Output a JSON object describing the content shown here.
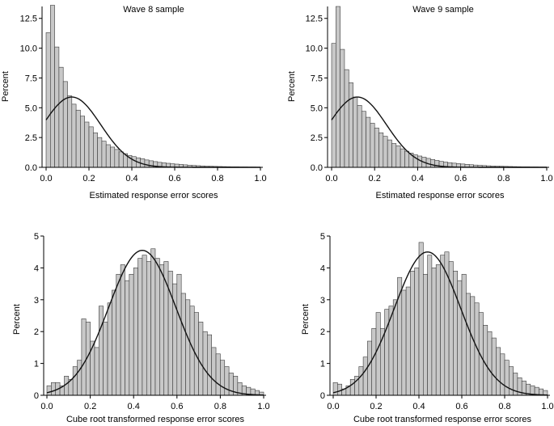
{
  "chart_data": [
    {
      "type": "histogram",
      "title": "Wave 8 sample",
      "xlabel": "Estimated response error scores",
      "ylabel": "Percent",
      "xlim": [
        0,
        1.0
      ],
      "ylim": [
        0,
        13.5
      ],
      "xticks": [
        "0.0",
        "0.2",
        "0.4",
        "0.6",
        "0.8",
        "1.0"
      ],
      "yticks": [
        "0.0",
        "2.5",
        "5.0",
        "7.5",
        "10.0",
        "12.5"
      ],
      "bin_width": 0.02,
      "bin_start": 0.0,
      "values": [
        11.3,
        13.6,
        10.1,
        8.4,
        7.2,
        6.0,
        5.3,
        4.8,
        4.3,
        3.8,
        3.4,
        2.9,
        2.5,
        2.2,
        1.9,
        1.7,
        1.5,
        1.3,
        1.15,
        1.0,
        0.9,
        0.8,
        0.72,
        0.62,
        0.55,
        0.48,
        0.42,
        0.38,
        0.34,
        0.3,
        0.27,
        0.24,
        0.21,
        0.18,
        0.16,
        0.14,
        0.12,
        0.1,
        0.09,
        0.08,
        0.07,
        0.06,
        0.05,
        0.04,
        0.04,
        0.03,
        0.03,
        0.02,
        0.02,
        0.01
      ],
      "normal_curve": {
        "mean": 0.12,
        "sd": 0.135,
        "peak": 5.9
      }
    },
    {
      "type": "histogram",
      "title": "Wave 9 sample",
      "xlabel": "Estimated response error scores",
      "ylabel": "Percent",
      "xlim": [
        0,
        1.0
      ],
      "ylim": [
        0,
        13.5
      ],
      "xticks": [
        "0.0",
        "0.2",
        "0.4",
        "0.6",
        "0.8",
        "1.0"
      ],
      "yticks": [
        "0.0",
        "2.5",
        "5.0",
        "7.5",
        "10.0",
        "12.5"
      ],
      "bin_width": 0.02,
      "bin_start": 0.0,
      "values": [
        10.4,
        13.5,
        9.9,
        8.2,
        7.1,
        5.9,
        5.2,
        4.7,
        4.2,
        3.7,
        3.3,
        2.9,
        2.6,
        2.3,
        2.0,
        1.8,
        1.55,
        1.35,
        1.2,
        1.05,
        0.95,
        0.85,
        0.75,
        0.66,
        0.58,
        0.5,
        0.44,
        0.39,
        0.35,
        0.31,
        0.28,
        0.25,
        0.22,
        0.19,
        0.17,
        0.15,
        0.13,
        0.11,
        0.1,
        0.09,
        0.08,
        0.07,
        0.06,
        0.05,
        0.04,
        0.04,
        0.03,
        0.03,
        0.02,
        0.02
      ],
      "normal_curve": {
        "mean": 0.12,
        "sd": 0.135,
        "peak": 5.9
      }
    },
    {
      "type": "histogram",
      "title": "",
      "xlabel": "Cube root transformed response error scores",
      "ylabel": "Percent",
      "xlim": [
        0,
        1.0
      ],
      "ylim": [
        0,
        5
      ],
      "xticks": [
        "0.0",
        "0.2",
        "0.4",
        "0.6",
        "0.8",
        "1.0"
      ],
      "yticks": [
        "0",
        "1",
        "2",
        "3",
        "4",
        "5"
      ],
      "bin_width": 0.02,
      "bin_start": 0.0,
      "values": [
        0.3,
        0.4,
        0.4,
        0.3,
        0.6,
        0.5,
        0.9,
        1.1,
        2.4,
        2.3,
        1.7,
        1.5,
        2.8,
        2.3,
        2.9,
        3.3,
        3.8,
        4.1,
        3.6,
        3.8,
        4.0,
        4.3,
        4.4,
        4.2,
        4.6,
        4.3,
        4.1,
        4.2,
        3.9,
        3.5,
        3.8,
        3.2,
        3.0,
        2.8,
        2.6,
        2.3,
        2.0,
        1.9,
        1.5,
        1.3,
        1.1,
        0.9,
        0.7,
        0.6,
        0.4,
        0.3,
        0.25,
        0.2,
        0.15,
        0.1
      ],
      "normal_curve": {
        "mean": 0.44,
        "sd": 0.155,
        "peak": 4.55
      }
    },
    {
      "type": "histogram",
      "title": "",
      "xlabel": "Cube root transformed response error scores",
      "ylabel": "Percent",
      "xlim": [
        0,
        1.0
      ],
      "ylim": [
        0,
        5
      ],
      "xticks": [
        "0.0",
        "0.2",
        "0.4",
        "0.6",
        "0.8",
        "1.0"
      ],
      "yticks": [
        "0",
        "1",
        "2",
        "3",
        "4",
        "5"
      ],
      "bin_width": 0.02,
      "bin_start": 0.0,
      "values": [
        0.4,
        0.35,
        0.2,
        0.3,
        0.5,
        0.6,
        0.9,
        1.2,
        1.7,
        2.1,
        2.6,
        2.1,
        2.7,
        2.8,
        3.0,
        3.7,
        3.3,
        3.4,
        3.9,
        4.0,
        4.8,
        3.8,
        4.4,
        4.0,
        4.1,
        4.4,
        4.5,
        4.2,
        3.9,
        3.6,
        3.8,
        3.2,
        3.1,
        2.9,
        2.6,
        2.2,
        2.0,
        1.8,
        1.5,
        1.3,
        1.1,
        0.9,
        0.7,
        0.55,
        0.45,
        0.35,
        0.3,
        0.25,
        0.2,
        0.15
      ],
      "normal_curve": {
        "mean": 0.44,
        "sd": 0.155,
        "peak": 4.5
      }
    }
  ]
}
